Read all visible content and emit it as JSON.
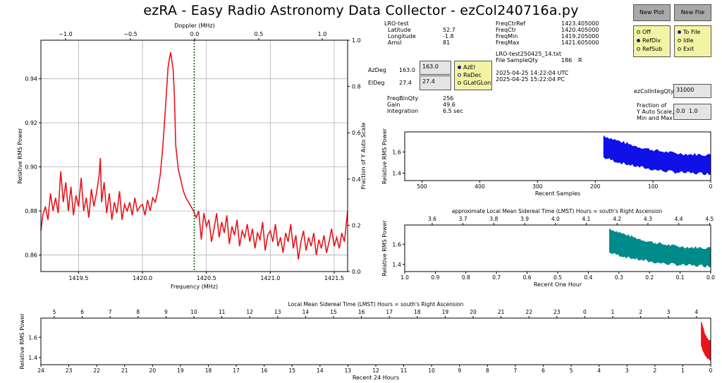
{
  "title": "ezRA - Easy Radio Astronomy Data Collector - ezCol240716a.py",
  "buttons": {
    "new_plot": "New Plot",
    "new_file": "New File"
  },
  "station": {
    "name": "LRO-test",
    "rows": [
      {
        "label": "Latitude",
        "value": "52.7"
      },
      {
        "label": "Longitude",
        "value": "-1.8"
      },
      {
        "label": "Amsl",
        "value": "81"
      }
    ]
  },
  "freq": {
    "rows": [
      {
        "label": "FreqCtrRef",
        "value": "1423.405000"
      },
      {
        "label": "FreqCtr",
        "value": "1420.405000"
      },
      {
        "label": "FreqMin",
        "value": "1419.205000"
      },
      {
        "label": "FreqMax",
        "value": "1421.605000"
      }
    ]
  },
  "file": {
    "name": "LRO-test250425_14.txt",
    "sample_label": "File SampleQty",
    "sample_qty": "186",
    "sample_suffix": "R"
  },
  "times": {
    "utc": "2025-04-25  14:22:04  UTC",
    "pc": "2025-04-25  15:22:04  PC"
  },
  "pointing": {
    "az_label": "AzDeg",
    "az_value": "163.0",
    "az_input": "163.0",
    "el_label": "ElDeg",
    "el_value": "27.4",
    "el_input": "27.4"
  },
  "coord_options": [
    {
      "label": "AzEl",
      "selected": true
    },
    {
      "label": "RaDec",
      "selected": false
    },
    {
      "label": "GLatGLon",
      "selected": false
    }
  ],
  "ref_options": [
    {
      "label": "Off",
      "selected": false
    },
    {
      "label": "RefDiv",
      "selected": true
    },
    {
      "label": "RefSub",
      "selected": false
    }
  ],
  "file_options": [
    {
      "label": "To File",
      "selected": true
    },
    {
      "label": "Idle",
      "selected": false
    },
    {
      "label": "Exit",
      "selected": false
    }
  ],
  "settings": [
    {
      "label": "FreqBinQty",
      "value": "256"
    },
    {
      "label": "Gain",
      "value": "49.6"
    },
    {
      "label": "Integration",
      "value": "6.5  sec"
    }
  ],
  "integ": {
    "label": "ezColIntegQty",
    "value": "31000"
  },
  "yauto": {
    "label1": "Fraction of",
    "label2": "Y Auto Scale,",
    "label3": "Min and Max",
    "min": "0.0",
    "max": "1.0"
  },
  "chart_data": [
    {
      "type": "line",
      "id": "spectrum",
      "xlabel": "Frequency (MHz)",
      "ylabel": "Relative RMS Power",
      "top_label": "Doppler (MHz)",
      "right_label": "Fraction of Y Auto Scale",
      "xlim": [
        1419.205,
        1421.605
      ],
      "ylim": [
        0.8525,
        0.9575
      ],
      "xticks": [
        "1419.5",
        "1420.0",
        "1420.5",
        "1421.0",
        "1421.5"
      ],
      "yticks": [
        "0.86",
        "0.88",
        "0.90",
        "0.92",
        "0.94"
      ],
      "top_ticks": [
        "−1.0",
        "−0.5",
        "0.0",
        "0.5",
        "1.0"
      ],
      "right_ticks": [
        "0.0",
        "0.2",
        "0.4",
        "0.6",
        "0.8",
        "1.0"
      ],
      "marker_freq": 1420.405,
      "grid": true,
      "series": [
        {
          "color": "#e8141a",
          "x": [
            1419.205,
            1419.22,
            1419.24,
            1419.26,
            1419.28,
            1419.3,
            1419.32,
            1419.34,
            1419.36,
            1419.38,
            1419.4,
            1419.42,
            1419.44,
            1419.46,
            1419.48,
            1419.5,
            1419.52,
            1419.54,
            1419.56,
            1419.58,
            1419.6,
            1419.62,
            1419.64,
            1419.66,
            1419.67,
            1419.68,
            1419.7,
            1419.72,
            1419.74,
            1419.76,
            1419.78,
            1419.8,
            1419.82,
            1419.84,
            1419.86,
            1419.88,
            1419.9,
            1419.92,
            1419.94,
            1419.96,
            1419.98,
            1420.0,
            1420.02,
            1420.04,
            1420.06,
            1420.08,
            1420.1,
            1420.12,
            1420.14,
            1420.16,
            1420.18,
            1420.2,
            1420.21,
            1420.22,
            1420.23,
            1420.24,
            1420.25,
            1420.26,
            1420.28,
            1420.3,
            1420.32,
            1420.34,
            1420.36,
            1420.38,
            1420.4,
            1420.42,
            1420.44,
            1420.46,
            1420.48,
            1420.5,
            1420.52,
            1420.54,
            1420.56,
            1420.58,
            1420.6,
            1420.62,
            1420.64,
            1420.66,
            1420.68,
            1420.7,
            1420.72,
            1420.74,
            1420.76,
            1420.78,
            1420.8,
            1420.82,
            1420.84,
            1420.86,
            1420.88,
            1420.9,
            1420.92,
            1420.94,
            1420.96,
            1420.98,
            1421.0,
            1421.02,
            1421.04,
            1421.06,
            1421.08,
            1421.1,
            1421.12,
            1421.14,
            1421.16,
            1421.18,
            1421.2,
            1421.22,
            1421.24,
            1421.26,
            1421.28,
            1421.3,
            1421.32,
            1421.34,
            1421.36,
            1421.38,
            1421.4,
            1421.42,
            1421.44,
            1421.46,
            1421.48,
            1421.5,
            1421.52,
            1421.54,
            1421.56,
            1421.58,
            1421.605
          ],
          "y": [
            0.871,
            0.878,
            0.882,
            0.876,
            0.888,
            0.88,
            0.886,
            0.879,
            0.898,
            0.884,
            0.893,
            0.88,
            0.891,
            0.878,
            0.887,
            0.882,
            0.895,
            0.88,
            0.886,
            0.877,
            0.89,
            0.882,
            0.888,
            0.896,
            0.904,
            0.884,
            0.893,
            0.879,
            0.888,
            0.876,
            0.884,
            0.879,
            0.889,
            0.876,
            0.883,
            0.88,
            0.884,
            0.878,
            0.886,
            0.88,
            0.882,
            0.883,
            0.878,
            0.885,
            0.88,
            0.886,
            0.884,
            0.889,
            0.897,
            0.91,
            0.927,
            0.945,
            0.949,
            0.952,
            0.948,
            0.944,
            0.932,
            0.91,
            0.899,
            0.894,
            0.889,
            0.886,
            0.884,
            0.882,
            0.88,
            0.877,
            0.88,
            0.867,
            0.879,
            0.873,
            0.876,
            0.866,
            0.872,
            0.879,
            0.868,
            0.875,
            0.87,
            0.878,
            0.865,
            0.873,
            0.869,
            0.876,
            0.864,
            0.871,
            0.868,
            0.874,
            0.866,
            0.872,
            0.863,
            0.87,
            0.867,
            0.875,
            0.862,
            0.869,
            0.871,
            0.866,
            0.874,
            0.864,
            0.868,
            0.861,
            0.87,
            0.866,
            0.874,
            0.863,
            0.869,
            0.858,
            0.866,
            0.871,
            0.862,
            0.868,
            0.864,
            0.87,
            0.86,
            0.867,
            0.863,
            0.869,
            0.861,
            0.866,
            0.872,
            0.864,
            0.868,
            0.863,
            0.87,
            0.866,
            0.88
          ]
        }
      ]
    },
    {
      "type": "area",
      "id": "recent-samples",
      "xlabel": "Recent Samples",
      "ylabel": "Relative RMS Power",
      "xlim": [
        530,
        0
      ],
      "ylim": [
        1.33,
        1.79
      ],
      "xticks": [
        500,
        400,
        300,
        200,
        100,
        0
      ],
      "yticks": [
        1.4,
        1.6
      ],
      "color": "#1010e8",
      "start": 185,
      "upper_start": 1.75,
      "upper_end": 1.57,
      "lower_start": 1.55,
      "lower_end": 1.4
    },
    {
      "type": "area",
      "id": "recent-hour",
      "xlabel": "Recent One Hour",
      "ylabel": "Relative RMS Power",
      "top_label": "approximate Local Mean Sidereal Time (LMST) Hours = south's Right Ascension",
      "xlim": [
        1.0,
        0.0
      ],
      "ylim": [
        1.33,
        1.79
      ],
      "xticks": [
        "1.0",
        "0.9",
        "0.8",
        "0.7",
        "0.6",
        "0.5",
        "0.4",
        "0.3",
        "0.2",
        "0.1",
        "0.0"
      ],
      "top_ticks": [
        "3.6",
        "3.7",
        "3.8",
        "3.9",
        "4.0",
        "4.1",
        "4.2",
        "4.3",
        "4.4",
        "4.5"
      ],
      "yticks": [
        1.4,
        1.6
      ],
      "color": "#008b8b",
      "start": 0.33,
      "upper_start": 1.75,
      "upper_end": 1.56,
      "lower_start": 1.52,
      "lower_end": 1.39
    },
    {
      "type": "area",
      "id": "recent-24",
      "xlabel": "Recent 24 Hours",
      "ylabel": "Relative RMS Power",
      "top_label": "Local Mean Sidereal Time (LMST) Hours = south's Right Ascension",
      "xlim": [
        24,
        0
      ],
      "ylim": [
        1.33,
        1.79
      ],
      "xticks": [
        "24",
        "23",
        "22",
        "21",
        "20",
        "19",
        "18",
        "17",
        "16",
        "15",
        "14",
        "13",
        "12",
        "11",
        "10",
        "9",
        "8",
        "7",
        "6",
        "5",
        "4",
        "3",
        "2",
        "1",
        "0"
      ],
      "top_ticks": [
        "5",
        "6",
        "7",
        "8",
        "9",
        "10",
        "11",
        "12",
        "13",
        "14",
        "15",
        "16",
        "17",
        "18",
        "19",
        "20",
        "21",
        "22",
        "23",
        "0",
        "1",
        "2",
        "3",
        "4"
      ],
      "yticks": [
        1.4,
        1.6
      ],
      "color": "#e8141a",
      "start": 0.33,
      "upper_start": 1.75,
      "upper_end": 1.56,
      "lower_start": 1.52,
      "lower_end": 1.39
    }
  ]
}
